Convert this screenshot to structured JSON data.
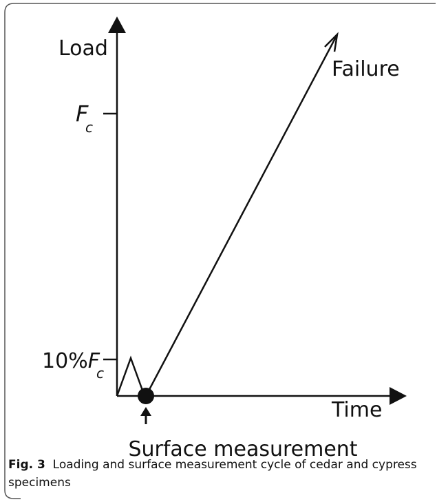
{
  "figure": {
    "y_label": "Load",
    "x_label": "Time",
    "ticks": [
      {
        "symbol": "F",
        "subscript": "c"
      },
      {
        "prefix": "10%",
        "symbol": "F",
        "subscript": "c"
      }
    ],
    "failure_label": "Failure",
    "measurement_label": "Surface measurement"
  },
  "caption": {
    "label": "Fig. 3",
    "text": "Loading and surface measurement cycle of cedar and cypress specimens"
  }
}
